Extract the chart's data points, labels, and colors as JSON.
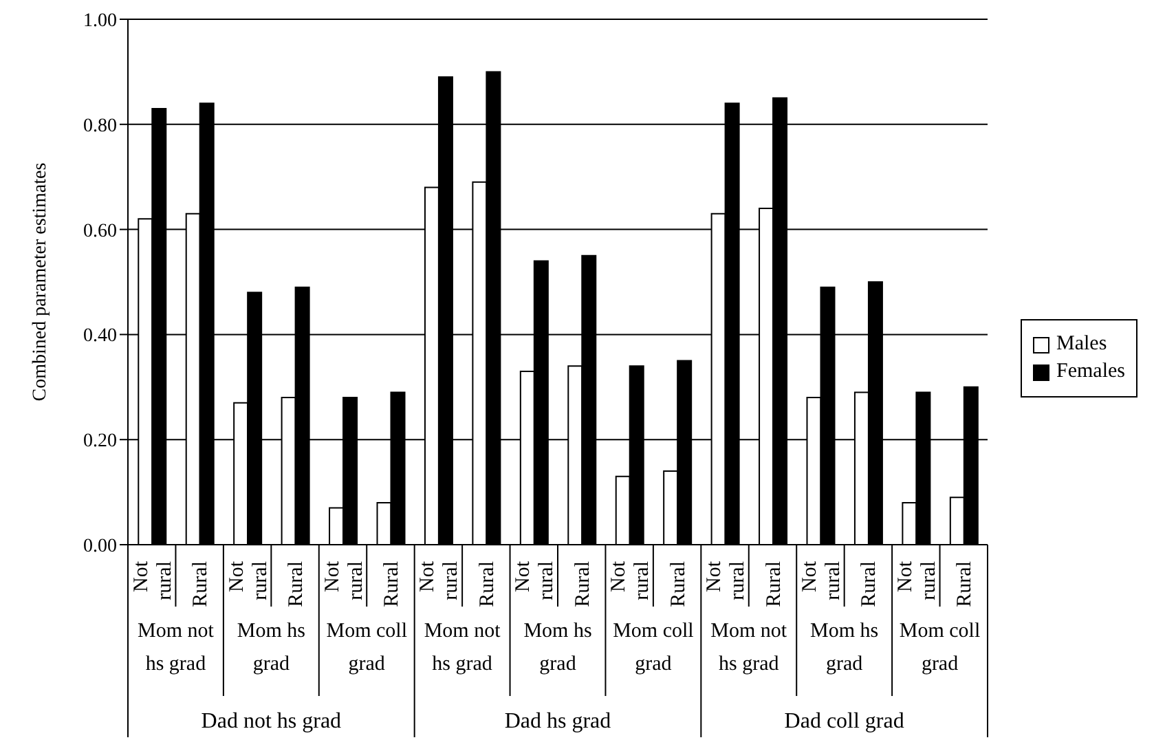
{
  "chart_data": {
    "type": "bar",
    "ylabel": "Combined parameter estimates",
    "categories": [
      "Not rural",
      "Rural",
      "Not rural",
      "Rural",
      "Not rural",
      "Rural",
      "Not rural",
      "Rural",
      "Not rural",
      "Rural",
      "Not rural",
      "Rural",
      "Not rural",
      "Rural",
      "Not rural",
      "Rural",
      "Not rural",
      "Rural"
    ],
    "series": [
      {
        "name": "Males",
        "color": "#ffffff",
        "values": [
          0.62,
          0.63,
          0.27,
          0.28,
          0.07,
          0.08,
          0.68,
          0.69,
          0.33,
          0.34,
          0.13,
          0.14,
          0.63,
          0.64,
          0.28,
          0.29,
          0.08,
          0.09
        ]
      },
      {
        "name": "Females",
        "color": "#000000",
        "values": [
          0.83,
          0.84,
          0.48,
          0.49,
          0.28,
          0.29,
          0.89,
          0.9,
          0.54,
          0.55,
          0.34,
          0.35,
          0.84,
          0.85,
          0.49,
          0.5,
          0.29,
          0.3
        ]
      }
    ],
    "annotations": [
      "Mom not hs grad",
      "Mom hs grad",
      "Mom coll grad",
      "Mom not hs grad",
      "Mom hs grad",
      "Mom coll grad",
      "Mom not hs grad",
      "Mom hs grad",
      "Mom coll grad",
      "Dad not hs grad",
      "Dad hs grad",
      "Dad coll grad"
    ],
    "ylim": [
      0,
      1
    ],
    "yticks": [
      {
        "value": 0,
        "label": "0.00"
      },
      {
        "value": 0.2,
        "label": "0.20"
      },
      {
        "value": 0.4,
        "label": "0.40"
      },
      {
        "value": 0.6,
        "label": "0.60"
      },
      {
        "value": 0.8,
        "label": "0.80"
      },
      {
        "value": 1,
        "label": "1.00"
      }
    ],
    "grid": "y",
    "legend": "right"
  }
}
